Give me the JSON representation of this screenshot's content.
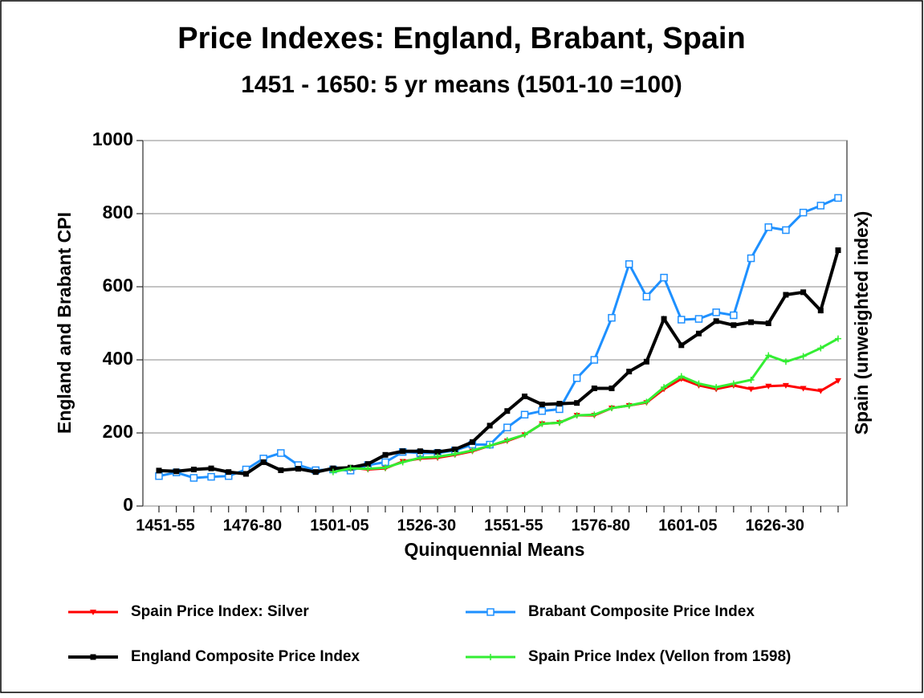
{
  "chart_data": {
    "type": "line",
    "title": "Price Indexes: England, Brabant, Spain",
    "subtitle": "1451 - 1650: 5 yr means (1501-10 =100)",
    "x_label": "Quinquennial Means",
    "y_label": "England and Brabant CPI",
    "y2_label": "Spain (unweighted index)",
    "categories": [
      "1451-55",
      null,
      null,
      null,
      null,
      "1476-80",
      null,
      null,
      null,
      null,
      "1501-05",
      null,
      null,
      null,
      null,
      "1526-30",
      null,
      null,
      null,
      null,
      "1551-55",
      null,
      null,
      null,
      null,
      "1576-80",
      null,
      null,
      null,
      null,
      "1601-05",
      null,
      null,
      null,
      null,
      "1626-30",
      null,
      null,
      null,
      null
    ],
    "ylim": [
      0,
      1000
    ],
    "yticks": [
      0,
      200,
      400,
      600,
      800,
      1000
    ],
    "grid": true,
    "series": [
      {
        "name": "Spain Price Index: Silver",
        "color": "#ff0000",
        "marker": "triangle",
        "values": [
          null,
          null,
          null,
          null,
          null,
          null,
          null,
          null,
          null,
          null,
          100,
          105,
          100,
          103,
          122,
          130,
          132,
          140,
          150,
          165,
          178,
          195,
          225,
          228,
          248,
          248,
          268,
          275,
          283,
          320,
          348,
          330,
          320,
          330,
          320,
          328,
          330,
          322,
          315,
          343
        ]
      },
      {
        "name": "Brabant Composite Price Index",
        "color": "#1e90ff",
        "marker": "open-square",
        "values": [
          82,
          92,
          77,
          80,
          82,
          100,
          130,
          145,
          112,
          98,
          100,
          97,
          112,
          120,
          148,
          145,
          145,
          152,
          168,
          168,
          215,
          250,
          260,
          265,
          350,
          400,
          515,
          662,
          573,
          625,
          510,
          512,
          530,
          522,
          678,
          763,
          755,
          803,
          822,
          843
        ]
      },
      {
        "name": "England Composite Price Index",
        "color": "#000000",
        "marker": "square",
        "values": [
          97,
          95,
          100,
          103,
          93,
          88,
          120,
          98,
          102,
          93,
          103,
          105,
          115,
          140,
          150,
          150,
          148,
          155,
          175,
          220,
          260,
          300,
          278,
          280,
          282,
          322,
          322,
          368,
          395,
          512,
          440,
          472,
          506,
          495,
          503,
          500,
          578,
          585,
          535,
          700
        ]
      },
      {
        "name": "Spain Price Index (Vellon from 1598)",
        "color": "#33ee33",
        "marker": "plus",
        "values": [
          null,
          null,
          null,
          null,
          null,
          null,
          null,
          null,
          null,
          null,
          93,
          103,
          102,
          105,
          120,
          132,
          135,
          142,
          152,
          165,
          180,
          195,
          225,
          228,
          248,
          250,
          268,
          275,
          285,
          325,
          355,
          335,
          325,
          335,
          345,
          412,
          395,
          410,
          432,
          458
        ]
      }
    ]
  }
}
